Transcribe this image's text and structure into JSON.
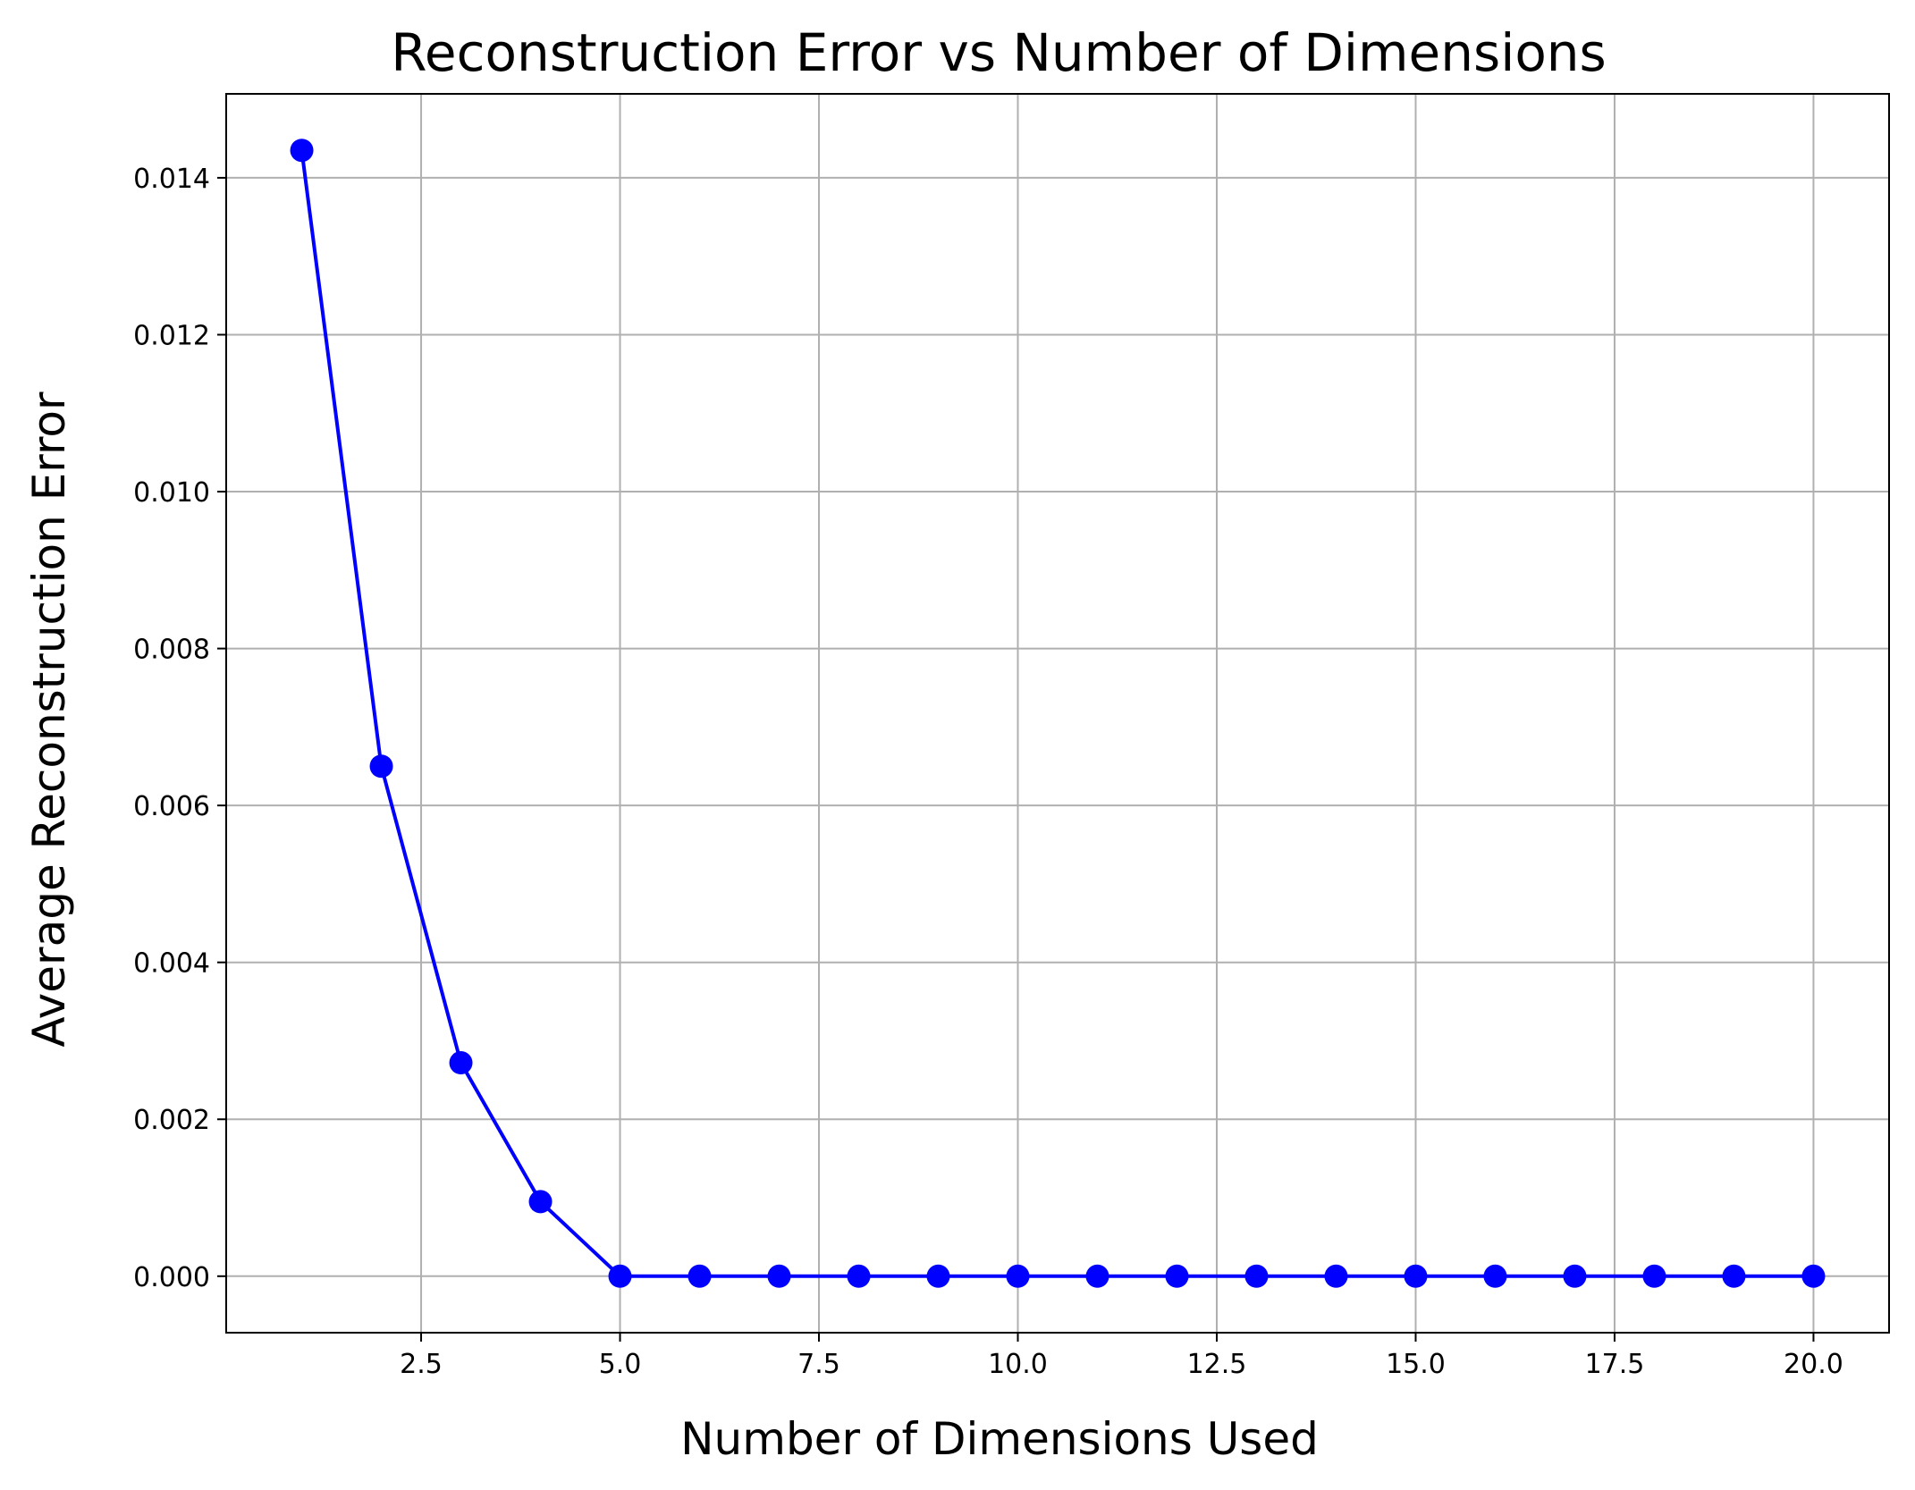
{
  "chart_data": {
    "type": "line",
    "title": "Reconstruction Error vs Number of Dimensions",
    "xlabel": "Number of Dimensions Used",
    "ylabel": "Average Reconstruction Error",
    "xlim": [
      0.05,
      20.95
    ],
    "ylim": [
      -0.00072,
      0.01507
    ],
    "x_ticks": [
      2.5,
      5.0,
      7.5,
      10.0,
      12.5,
      15.0,
      17.5,
      20.0
    ],
    "x_tick_labels": [
      "2.5",
      "5.0",
      "7.5",
      "10.0",
      "12.5",
      "15.0",
      "17.5",
      "20.0"
    ],
    "y_ticks": [
      0.0,
      0.002,
      0.004,
      0.006,
      0.008,
      0.01,
      0.012,
      0.014
    ],
    "y_tick_labels": [
      "0.000",
      "0.002",
      "0.004",
      "0.006",
      "0.008",
      "0.010",
      "0.012",
      "0.014"
    ],
    "grid": true,
    "color": "#0000ff",
    "marker": "circle",
    "x": [
      1,
      2,
      3,
      4,
      5,
      6,
      7,
      8,
      9,
      10,
      11,
      12,
      13,
      14,
      15,
      16,
      17,
      18,
      19,
      20
    ],
    "y": [
      0.01435,
      0.0065,
      0.00272,
      0.00095,
      0.0,
      0.0,
      0.0,
      0.0,
      0.0,
      0.0,
      0.0,
      0.0,
      0.0,
      0.0,
      0.0,
      0.0,
      0.0,
      0.0,
      0.0,
      0.0
    ]
  }
}
